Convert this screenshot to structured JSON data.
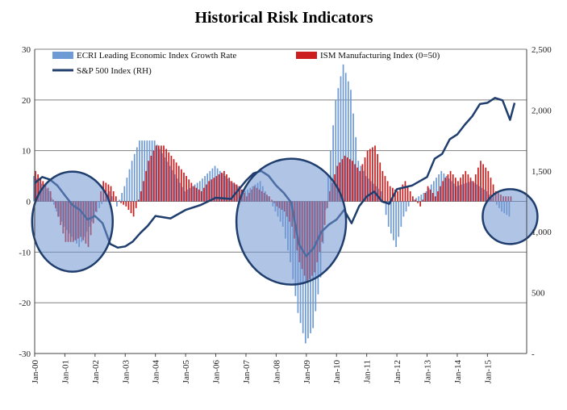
{
  "chart_data": {
    "type": "bar",
    "title": "Historical Risk Indicators",
    "x_tick_labels": [
      "Jan-00",
      "Jan-01",
      "Jan-02",
      "Jan-03",
      "Jan-04",
      "Jan-05",
      "Jan-06",
      "Jan-07",
      "Jan-08",
      "Jan-09",
      "Jan-10",
      "Jan-11",
      "Jan-12",
      "Jan-13",
      "Jan-14",
      "Jan-15"
    ],
    "left_axis": {
      "min": -30,
      "max": 30,
      "step": 10,
      "tick_labels": [
        "30",
        "20",
        "10",
        "0",
        "-10",
        "-20",
        "-30"
      ]
    },
    "right_axis": {
      "min": 0,
      "max": 2500,
      "step": 500,
      "tick_labels": [
        "2,500",
        "2,000",
        "1,500",
        "1,000",
        "500",
        "-"
      ]
    },
    "legend": {
      "ecri": "ECRI Leading Economic Index Growth Rate",
      "ism": "ISM Manufacturing Index (0=50)",
      "sp500": "S&P 500 Index (RH)"
    },
    "colors": {
      "ecri": "#6f9bd4",
      "ism": "#cc1e1e",
      "sp500": "#1f3e6e",
      "circle_fill": "#6f93cf",
      "circle_stroke": "#1f3e6e",
      "grid": "#7f7f7f"
    },
    "series": {
      "ecri": {
        "name": "ECRI Leading Economic Index Growth Rate",
        "x": [
          2000.0,
          2000.5,
          2000.75,
          2001.0,
          2001.5,
          2002.0,
          2002.5,
          2002.75,
          2003.0,
          2003.25,
          2003.5,
          2004.0,
          2004.5,
          2005.0,
          2005.5,
          2006.0,
          2006.5,
          2007.0,
          2007.5,
          2007.75,
          2008.0,
          2008.25,
          2008.5,
          2008.75,
          2009.0,
          2009.25,
          2009.5,
          2009.75,
          2010.0,
          2010.25,
          2010.5,
          2010.75,
          2011.0,
          2011.5,
          2011.75,
          2012.0,
          2012.25,
          2012.5,
          2013.0,
          2013.5,
          2014.0,
          2014.5,
          2015.0,
          2015.5,
          2015.75
        ],
        "values": [
          5,
          2,
          -2,
          -5,
          -9,
          -3,
          2,
          -1,
          3,
          8,
          12,
          12,
          7,
          2,
          4,
          7,
          4,
          2,
          4,
          1,
          -2,
          -5,
          -12,
          -22,
          -28,
          -25,
          -15,
          5,
          20,
          27,
          22,
          8,
          5,
          2,
          -5,
          -9,
          -3,
          0,
          2,
          6,
          3,
          4,
          2,
          -2,
          -3
        ]
      },
      "ism": {
        "name": "ISM Manufacturing Index (0=50)",
        "x": [
          2000.0,
          2000.25,
          2000.5,
          2000.75,
          2001.0,
          2001.25,
          2001.5,
          2001.75,
          2002.0,
          2002.25,
          2002.5,
          2002.75,
          2003.0,
          2003.25,
          2003.5,
          2003.75,
          2004.0,
          2004.25,
          2004.5,
          2004.75,
          2005.0,
          2005.25,
          2005.5,
          2005.75,
          2006.0,
          2006.25,
          2006.5,
          2006.75,
          2007.0,
          2007.25,
          2007.5,
          2007.75,
          2008.0,
          2008.25,
          2008.5,
          2008.75,
          2009.0,
          2009.25,
          2009.5,
          2009.75,
          2010.0,
          2010.25,
          2010.5,
          2010.75,
          2011.0,
          2011.25,
          2011.5,
          2011.75,
          2012.0,
          2012.25,
          2012.5,
          2012.75,
          2013.0,
          2013.25,
          2013.5,
          2013.75,
          2014.0,
          2014.25,
          2014.5,
          2014.75,
          2015.0,
          2015.25,
          2015.5,
          2015.75
        ],
        "values": [
          6,
          4,
          2,
          -3,
          -8,
          -8,
          -7,
          -9,
          -2,
          4,
          3,
          0,
          -1,
          -3,
          2,
          8,
          11,
          11,
          9,
          7,
          5,
          3,
          2,
          4,
          5,
          6,
          4,
          3,
          1,
          3,
          2,
          1,
          -1,
          -2,
          -5,
          -12,
          -16,
          -14,
          -8,
          2,
          7,
          9,
          8,
          6,
          10,
          11,
          6,
          3,
          2,
          4,
          1,
          -1,
          3,
          1,
          4,
          6,
          4,
          6,
          4,
          8,
          6,
          2,
          1,
          1
        ]
      },
      "sp500": {
        "name": "S&P 500 Index (RH)",
        "x": [
          2000.0,
          2000.25,
          2000.5,
          2000.75,
          2001.0,
          2001.25,
          2001.5,
          2001.75,
          2002.0,
          2002.25,
          2002.5,
          2002.75,
          2003.0,
          2003.25,
          2003.5,
          2003.75,
          2004.0,
          2004.5,
          2005.0,
          2005.5,
          2006.0,
          2006.5,
          2007.0,
          2007.25,
          2007.5,
          2007.75,
          2008.0,
          2008.25,
          2008.5,
          2008.75,
          2009.0,
          2009.25,
          2009.5,
          2009.75,
          2010.0,
          2010.25,
          2010.5,
          2010.75,
          2011.0,
          2011.25,
          2011.5,
          2011.75,
          2012.0,
          2012.5,
          2013.0,
          2013.25,
          2013.5,
          2013.75,
          2014.0,
          2014.25,
          2014.5,
          2014.75,
          2015.0,
          2015.25,
          2015.5,
          2015.75,
          2015.9
        ],
        "values": [
          1400,
          1450,
          1430,
          1380,
          1300,
          1220,
          1180,
          1100,
          1130,
          1070,
          900,
          870,
          880,
          920,
          990,
          1050,
          1130,
          1110,
          1180,
          1220,
          1280,
          1270,
          1420,
          1480,
          1500,
          1460,
          1380,
          1320,
          1240,
          900,
          800,
          870,
          1000,
          1060,
          1100,
          1180,
          1070,
          1210,
          1290,
          1330,
          1250,
          1230,
          1350,
          1380,
          1450,
          1600,
          1640,
          1760,
          1800,
          1880,
          1950,
          2050,
          2060,
          2100,
          2080,
          1920,
          2060
        ]
      }
    },
    "annotations": [
      {
        "type": "circle",
        "center_x": 2001.25,
        "center_y": -4
      },
      {
        "type": "circle",
        "center_x": 2008.5,
        "center_y": -4
      },
      {
        "type": "circle",
        "center_x": 2015.75,
        "center_y": -3
      }
    ]
  }
}
